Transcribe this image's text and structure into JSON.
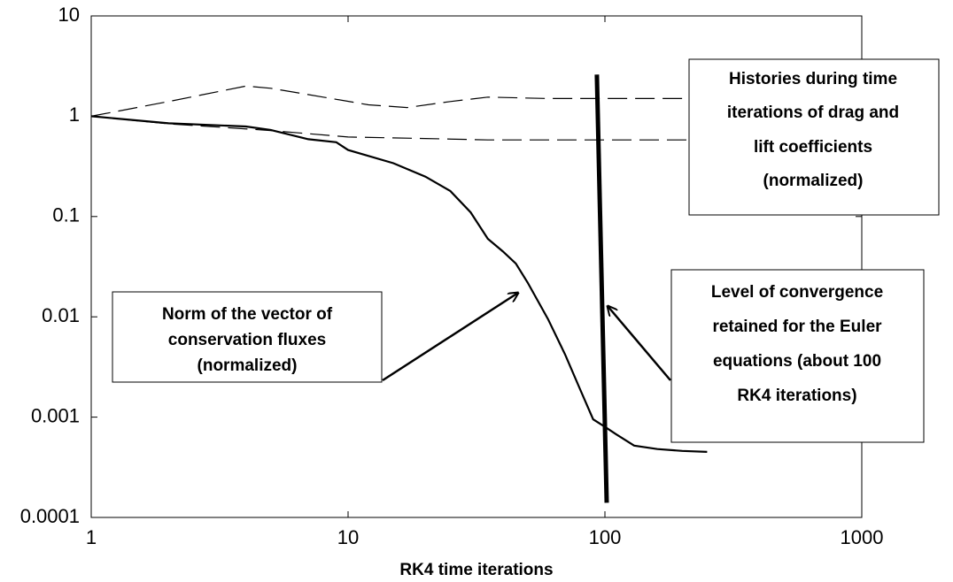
{
  "chart_data": {
    "type": "line",
    "xlabel": "RK4 time iterations",
    "xscale": "log",
    "yscale": "log",
    "xlim": [
      1,
      1000
    ],
    "ylim": [
      0.0001,
      10
    ],
    "xticks": [
      1,
      10,
      100,
      1000
    ],
    "yticks": [
      0.0001,
      0.001,
      0.01,
      0.1,
      1,
      10
    ],
    "series": [
      {
        "color": "#000000",
        "linestyle": "solid",
        "linewidth": 2.2,
        "x": [
          1,
          2,
          4,
          5,
          7,
          9,
          10,
          15,
          20,
          25,
          30,
          35,
          40,
          45,
          50,
          60,
          70,
          80,
          90,
          100,
          110,
          130,
          160,
          200,
          250
        ],
        "values": [
          1,
          0.85,
          0.79,
          0.73,
          0.59,
          0.55,
          0.46,
          0.34,
          0.25,
          0.18,
          0.11,
          0.06,
          0.045,
          0.034,
          0.022,
          0.0095,
          0.0042,
          0.0019,
          0.00095,
          0.0008,
          0.00068,
          0.00052,
          0.00048,
          0.00046,
          0.00045
        ]
      },
      {
        "color": "#000000",
        "linestyle": "dashed",
        "linewidth": 1.2,
        "x": [
          1,
          2,
          4,
          5,
          8,
          12,
          17,
          25,
          35,
          60,
          100,
          250
        ],
        "values": [
          1,
          1.4,
          2.0,
          1.9,
          1.55,
          1.3,
          1.22,
          1.4,
          1.55,
          1.5,
          1.5,
          1.5
        ]
      },
      {
        "color": "#000000",
        "linestyle": "dashed",
        "linewidth": 1.2,
        "x": [
          1,
          2,
          5,
          10,
          20,
          35,
          100,
          250
        ],
        "values": [
          1,
          0.84,
          0.72,
          0.62,
          0.6,
          0.58,
          0.58,
          0.58
        ]
      },
      {
        "color": "#000000",
        "linestyle": "solid",
        "linewidth": 5,
        "x": [
          93,
          101.6
        ],
        "values": [
          2.6,
          0.00014
        ]
      }
    ],
    "annotations": [
      {
        "lines": [
          "Histories during time",
          "iterations of drag and",
          "lift coefficients",
          "(normalized)"
        ]
      },
      {
        "lines": [
          "Norm of the vector of",
          "conservation fluxes",
          "(normalized)"
        ]
      },
      {
        "lines": [
          "Level of convergence",
          "retained for the Euler",
          "equations (about 100",
          "RK4 iterations)"
        ]
      }
    ]
  }
}
